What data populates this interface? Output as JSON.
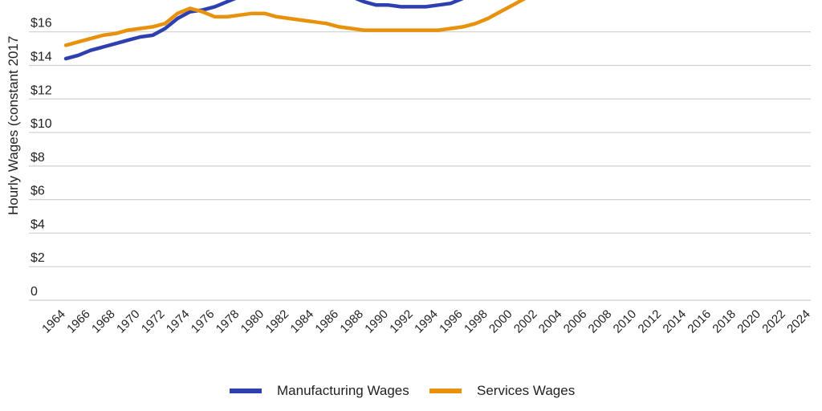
{
  "chart_data": {
    "type": "line",
    "ylabel": "Hourly Wages (constant 2017",
    "ylim": [
      0,
      17.9
    ],
    "y_ticks": [
      {
        "value": 0,
        "label": "0"
      },
      {
        "value": 2,
        "label": "$2"
      },
      {
        "value": 4,
        "label": "$4"
      },
      {
        "value": 6,
        "label": "$6"
      },
      {
        "value": 8,
        "label": "$8"
      },
      {
        "value": 10,
        "label": "$10"
      },
      {
        "value": 12,
        "label": "$12"
      },
      {
        "value": 14,
        "label": "$14"
      },
      {
        "value": 16,
        "label": "$16"
      }
    ],
    "x_ticks": [
      "1964",
      "1966",
      "1968",
      "1970",
      "1972",
      "1974",
      "1976",
      "1978",
      "1980",
      "1982",
      "1984",
      "1986",
      "1988",
      "1990",
      "1992",
      "1994",
      "1996",
      "1998",
      "2000",
      "2002",
      "2004",
      "2006",
      "2008",
      "2010",
      "2012",
      "2014",
      "2016",
      "2018",
      "2020",
      "2022",
      "2024"
    ],
    "grid": true,
    "legend_position": "bottom",
    "series": [
      {
        "name": "Manufacturing Wages",
        "color": "#2e3fb0",
        "points": [
          [
            1964,
            14.4
          ],
          [
            1965,
            14.6
          ],
          [
            1966,
            14.9
          ],
          [
            1967,
            15.1
          ],
          [
            1968,
            15.3
          ],
          [
            1969,
            15.5
          ],
          [
            1970,
            15.7
          ],
          [
            1971,
            15.8
          ],
          [
            1972,
            16.2
          ],
          [
            1973,
            16.8
          ],
          [
            1974,
            17.2
          ],
          [
            1975,
            17.3
          ],
          [
            1976,
            17.5
          ],
          [
            1977,
            17.8
          ],
          [
            1978,
            18.1
          ],
          [
            1987,
            18.1
          ],
          [
            1988,
            17.8
          ],
          [
            1989,
            17.6
          ],
          [
            1990,
            17.6
          ],
          [
            1991,
            17.5
          ],
          [
            1992,
            17.5
          ],
          [
            1993,
            17.5
          ],
          [
            1994,
            17.6
          ],
          [
            1995,
            17.7
          ],
          [
            1996,
            18.0
          ]
        ]
      },
      {
        "name": "Services Wages",
        "color": "#e8910c",
        "points": [
          [
            1964,
            15.2
          ],
          [
            1965,
            15.4
          ],
          [
            1966,
            15.6
          ],
          [
            1967,
            15.8
          ],
          [
            1968,
            15.9
          ],
          [
            1969,
            16.1
          ],
          [
            1970,
            16.2
          ],
          [
            1971,
            16.3
          ],
          [
            1972,
            16.5
          ],
          [
            1973,
            17.1
          ],
          [
            1974,
            17.4
          ],
          [
            1975,
            17.2
          ],
          [
            1976,
            16.9
          ],
          [
            1977,
            16.9
          ],
          [
            1978,
            17.0
          ],
          [
            1979,
            17.1
          ],
          [
            1980,
            17.1
          ],
          [
            1981,
            16.9
          ],
          [
            1982,
            16.8
          ],
          [
            1983,
            16.7
          ],
          [
            1984,
            16.6
          ],
          [
            1985,
            16.5
          ],
          [
            1986,
            16.3
          ],
          [
            1987,
            16.2
          ],
          [
            1988,
            16.1
          ],
          [
            1989,
            16.1
          ],
          [
            1990,
            16.1
          ],
          [
            1991,
            16.1
          ],
          [
            1992,
            16.1
          ],
          [
            1993,
            16.1
          ],
          [
            1994,
            16.1
          ],
          [
            1995,
            16.2
          ],
          [
            1996,
            16.3
          ],
          [
            1997,
            16.5
          ],
          [
            1998,
            16.8
          ],
          [
            1999,
            17.2
          ],
          [
            2000,
            17.6
          ],
          [
            2001,
            18.0
          ]
        ]
      }
    ]
  }
}
